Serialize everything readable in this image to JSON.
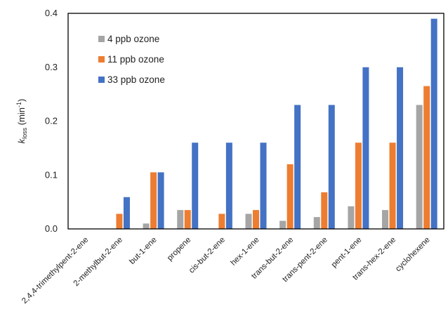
{
  "chart_data": {
    "type": "bar",
    "categories": [
      "2,4,4-trimethylpent-2-ene",
      "2-methylbut-2-ene",
      "but-1-ene",
      "propene",
      "cis-but-2-ene",
      "hex-1-ene",
      "trans-but-2-ene",
      "trans-pent-2-ene",
      "pent-1-ene",
      "trans-hex-2-ene",
      "cyclohexene"
    ],
    "series": [
      {
        "name": "4 ppb ozone",
        "color": "#a5a5a5",
        "values": [
          0,
          0,
          0.01,
          0.035,
          0,
          0.028,
          0.015,
          0.022,
          0.042,
          0.035,
          0.23
        ]
      },
      {
        "name": "11 ppb ozone",
        "color": "#ed7d31",
        "values": [
          0,
          0.028,
          0.105,
          0.035,
          0.028,
          0.035,
          0.12,
          0.068,
          0.16,
          0.16,
          0.265
        ]
      },
      {
        "name": "33 ppb ozone",
        "color": "#4472c4",
        "values": [
          0,
          0.059,
          0.105,
          0.16,
          0.16,
          0.16,
          0.23,
          0.23,
          0.3,
          0.3,
          0.39
        ]
      }
    ],
    "ylabel": {
      "k": "k",
      "sub": "loss",
      "rest": " (min",
      "sup": "-1",
      "end": ")"
    },
    "ylim": [
      0,
      0.4
    ],
    "yticks": [
      "0.0",
      "0.1",
      "0.2",
      "0.3",
      "0.4"
    ],
    "grid": false,
    "legend_position": "top-left"
  }
}
